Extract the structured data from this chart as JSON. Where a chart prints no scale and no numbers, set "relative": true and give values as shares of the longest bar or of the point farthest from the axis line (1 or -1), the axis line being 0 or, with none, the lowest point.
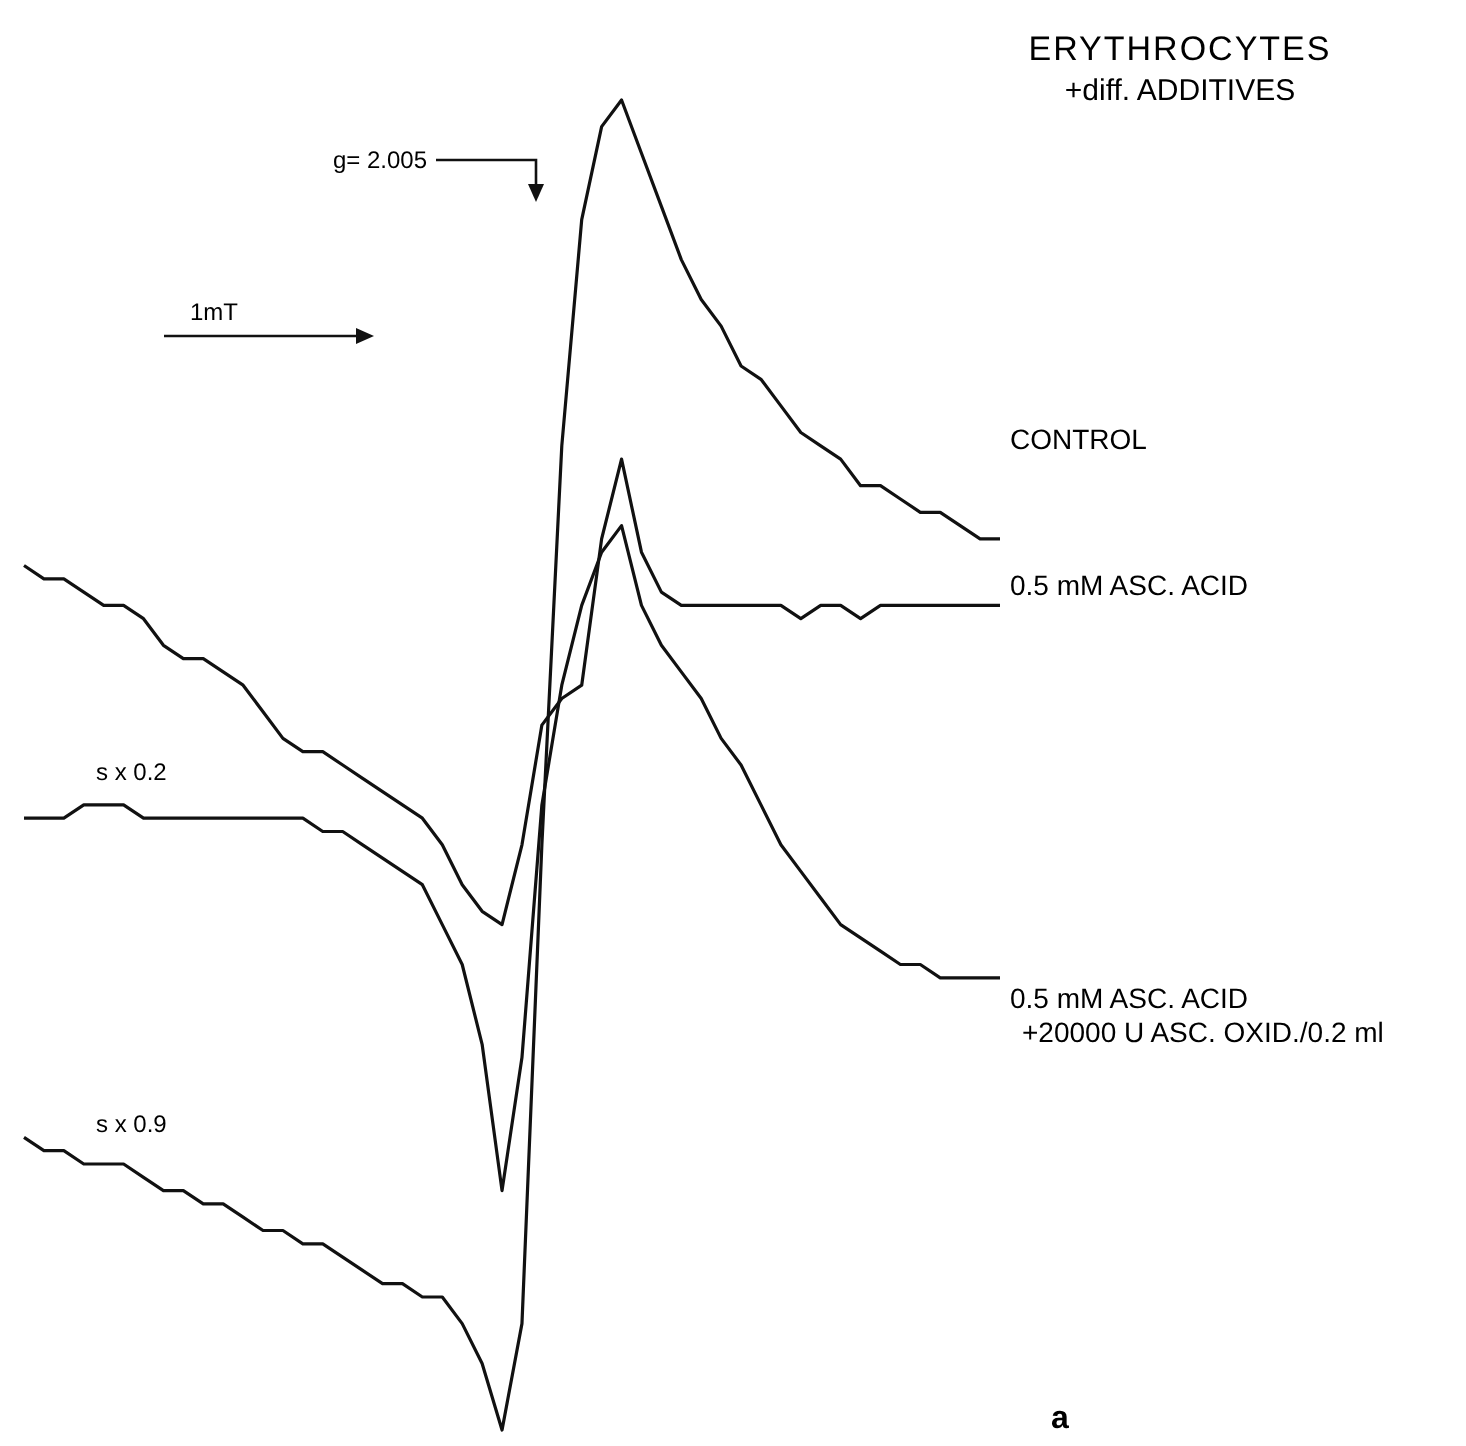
{
  "chart_data": {
    "type": "line",
    "relative": true,
    "title": "ERYTHROCYTES",
    "subtitle": "+diff. ADDITIVES",
    "line_style": "solid",
    "categories": [
      null,
      null,
      null,
      null,
      null,
      null,
      null,
      null,
      null,
      null,
      null,
      null,
      null,
      null,
      null,
      null,
      null,
      null,
      null,
      null,
      null,
      null,
      null,
      null,
      null,
      null,
      null,
      null,
      null,
      null,
      null,
      null,
      null,
      null,
      null,
      null,
      null,
      null,
      null,
      null,
      null,
      null,
      null,
      null,
      null,
      null,
      null,
      null,
      null,
      null
    ],
    "series": [
      {
        "name": "CONTROL",
        "color": "#111111",
        "values": [
          0.22,
          0.21,
          0.21,
          0.2,
          0.2,
          0.2,
          0.19,
          0.18,
          0.18,
          0.17,
          0.17,
          0.16,
          0.15,
          0.15,
          0.14,
          0.14,
          0.13,
          0.12,
          0.11,
          0.11,
          0.1,
          0.1,
          0.08,
          0.05,
          0,
          0.08,
          0.44,
          0.74,
          0.91,
          0.98,
          1,
          0.96,
          0.92,
          0.88,
          0.85,
          0.83,
          0.8,
          0.79,
          0.77,
          0.75,
          0.74,
          0.73,
          0.71,
          0.71,
          0.7,
          0.69,
          0.69,
          0.68,
          0.67,
          0.67
        ]
      },
      {
        "name": "0.5 mM ASC. ACID",
        "color": "#111111",
        "values": [
          0.65,
          0.64,
          0.64,
          0.63,
          0.62,
          0.62,
          0.61,
          0.59,
          0.58,
          0.58,
          0.57,
          0.56,
          0.54,
          0.52,
          0.51,
          0.51,
          0.5,
          0.49,
          0.48,
          0.47,
          0.46,
          0.44,
          0.41,
          0.39,
          0.38,
          0.44,
          0.53,
          0.55,
          0.56,
          0.67,
          0.73,
          0.66,
          0.63,
          0.62,
          0.62,
          0.62,
          0.62,
          0.62,
          0.62,
          0.61,
          0.62,
          0.62,
          0.61,
          0.62,
          0.62,
          0.62,
          0.62,
          0.62,
          0.62,
          0.62
        ]
      },
      {
        "name": "0.5 mM ASC. ACID\n+20000 U ASC. OXID./0.2 ml",
        "color": "#111111",
        "values": [
          0.46,
          0.46,
          0.46,
          0.47,
          0.47,
          0.47,
          0.46,
          0.46,
          0.46,
          0.46,
          0.46,
          0.46,
          0.46,
          0.46,
          0.46,
          0.45,
          0.45,
          0.44,
          0.43,
          0.42,
          0.41,
          0.38,
          0.35,
          0.29,
          0.18,
          0.28,
          0.47,
          0.56,
          0.62,
          0.66,
          0.68,
          0.62,
          0.59,
          0.57,
          0.55,
          0.52,
          0.5,
          0.47,
          0.44,
          0.42,
          0.4,
          0.38,
          0.37,
          0.36,
          0.35,
          0.35,
          0.34,
          0.34,
          0.34,
          0.34
        ]
      }
    ],
    "annotations": [
      "g= 2.005",
      "1mT",
      "s x 0.2",
      "s x 0.9",
      "a"
    ]
  }
}
